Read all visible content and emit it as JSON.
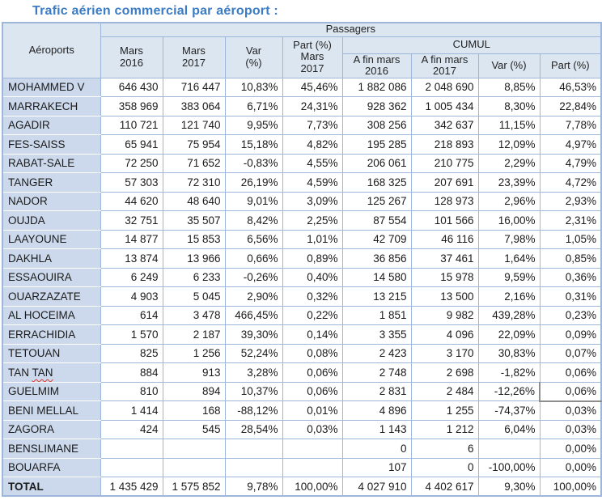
{
  "title": "Trafic aérien commercial par aéroport :",
  "colors": {
    "title": "#3b7cc4",
    "table_border": "#9db6d9",
    "header_fill": "#dce6f1",
    "airport_column_fill": "#ccd9ec",
    "selection_border": "#8e8e8e",
    "misspell_underline": "#e0342b"
  },
  "table": {
    "corner_header": "Aéroports",
    "group_header": "Passagers",
    "cumul_group_header": "CUMUL",
    "monthly_headers": [
      "Mars\n2016",
      "Mars\n2017",
      "Var\n(%)",
      "Part (%)\nMars\n2017"
    ],
    "cumul_headers": [
      "A fin mars\n2016",
      "A fin mars\n2017",
      "Var (%)",
      "Part (%)"
    ],
    "selected_cell": {
      "row_index": 16,
      "value_index": 7
    },
    "rows": [
      {
        "name": "MOHAMMED V",
        "values": [
          "646 430",
          "716 447",
          "10,83%",
          "45,46%",
          "1 882 086",
          "2 048 690",
          "8,85%",
          "46,53%"
        ]
      },
      {
        "name": "MARRAKECH",
        "values": [
          "358 969",
          "383 064",
          "6,71%",
          "24,31%",
          "928 362",
          "1 005 434",
          "8,30%",
          "22,84%"
        ]
      },
      {
        "name": "AGADIR",
        "values": [
          "110 721",
          "121 740",
          "9,95%",
          "7,73%",
          "308 256",
          "342 637",
          "11,15%",
          "7,78%"
        ]
      },
      {
        "name": "FES-SAISS",
        "values": [
          "65 941",
          "75 954",
          "15,18%",
          "4,82%",
          "195 285",
          "218 893",
          "12,09%",
          "4,97%"
        ]
      },
      {
        "name": "RABAT-SALE",
        "values": [
          "72 250",
          "71 652",
          "-0,83%",
          "4,55%",
          "206 061",
          "210 775",
          "2,29%",
          "4,79%"
        ]
      },
      {
        "name": "TANGER",
        "values": [
          "57 303",
          "72 310",
          "26,19%",
          "4,59%",
          "168 325",
          "207 691",
          "23,39%",
          "4,72%"
        ]
      },
      {
        "name": "NADOR",
        "values": [
          "44 620",
          "48 640",
          "9,01%",
          "3,09%",
          "125 267",
          "128 973",
          "2,96%",
          "2,93%"
        ]
      },
      {
        "name": "OUJDA",
        "values": [
          "32 751",
          "35 507",
          "8,42%",
          "2,25%",
          "87 554",
          "101 566",
          "16,00%",
          "2,31%"
        ]
      },
      {
        "name": "LAAYOUNE",
        "values": [
          "14 877",
          "15 853",
          "6,56%",
          "1,01%",
          "42 709",
          "46 116",
          "7,98%",
          "1,05%"
        ]
      },
      {
        "name": "DAKHLA",
        "values": [
          "13 874",
          "13 966",
          "0,66%",
          "0,89%",
          "36 856",
          "37 461",
          "1,64%",
          "0,85%"
        ]
      },
      {
        "name": "ESSAOUIRA",
        "values": [
          "6 249",
          "6 233",
          "-0,26%",
          "0,40%",
          "14 580",
          "15 978",
          "9,59%",
          "0,36%"
        ]
      },
      {
        "name": "OUARZAZATE",
        "values": [
          "4 903",
          "5 045",
          "2,90%",
          "0,32%",
          "13 215",
          "13 500",
          "2,16%",
          "0,31%"
        ]
      },
      {
        "name": "AL HOCEIMA",
        "values": [
          "614",
          "3 478",
          "466,45%",
          "0,22%",
          "1 851",
          "9 982",
          "439,28%",
          "0,23%"
        ]
      },
      {
        "name": "ERRACHIDIA",
        "values": [
          "1 570",
          "2 187",
          "39,30%",
          "0,14%",
          "3 355",
          "4 096",
          "22,09%",
          "0,09%"
        ]
      },
      {
        "name": "TETOUAN",
        "values": [
          "825",
          "1 256",
          "52,24%",
          "0,08%",
          "2 423",
          "3 170",
          "30,83%",
          "0,07%"
        ]
      },
      {
        "name": "TAN TAN",
        "misspelled": true,
        "values": [
          "884",
          "913",
          "3,28%",
          "0,06%",
          "2 748",
          "2 698",
          "-1,82%",
          "0,06%"
        ]
      },
      {
        "name": "GUELMIM",
        "values": [
          "810",
          "894",
          "10,37%",
          "0,06%",
          "2 831",
          "2 484",
          "-12,26%",
          "0,06%"
        ]
      },
      {
        "name": "BENI MELLAL",
        "values": [
          "1 414",
          "168",
          "-88,12%",
          "0,01%",
          "4 896",
          "1 255",
          "-74,37%",
          "0,03%"
        ]
      },
      {
        "name": "ZAGORA",
        "values": [
          "424",
          "545",
          "28,54%",
          "0,03%",
          "1 143",
          "1 212",
          "6,04%",
          "0,03%"
        ]
      },
      {
        "name": "BENSLIMANE",
        "values": [
          "",
          "",
          "",
          "",
          "0",
          "6",
          "",
          "0,00%"
        ]
      },
      {
        "name": "BOUARFA",
        "values": [
          "",
          "",
          "",
          "",
          "107",
          "0",
          "-100,00%",
          "0,00%"
        ]
      },
      {
        "name": "TOTAL",
        "is_total": true,
        "values": [
          "1 435 429",
          "1 575 852",
          "9,78%",
          "100,00%",
          "4 027 910",
          "4 402 617",
          "9,30%",
          "100,00%"
        ]
      }
    ]
  }
}
